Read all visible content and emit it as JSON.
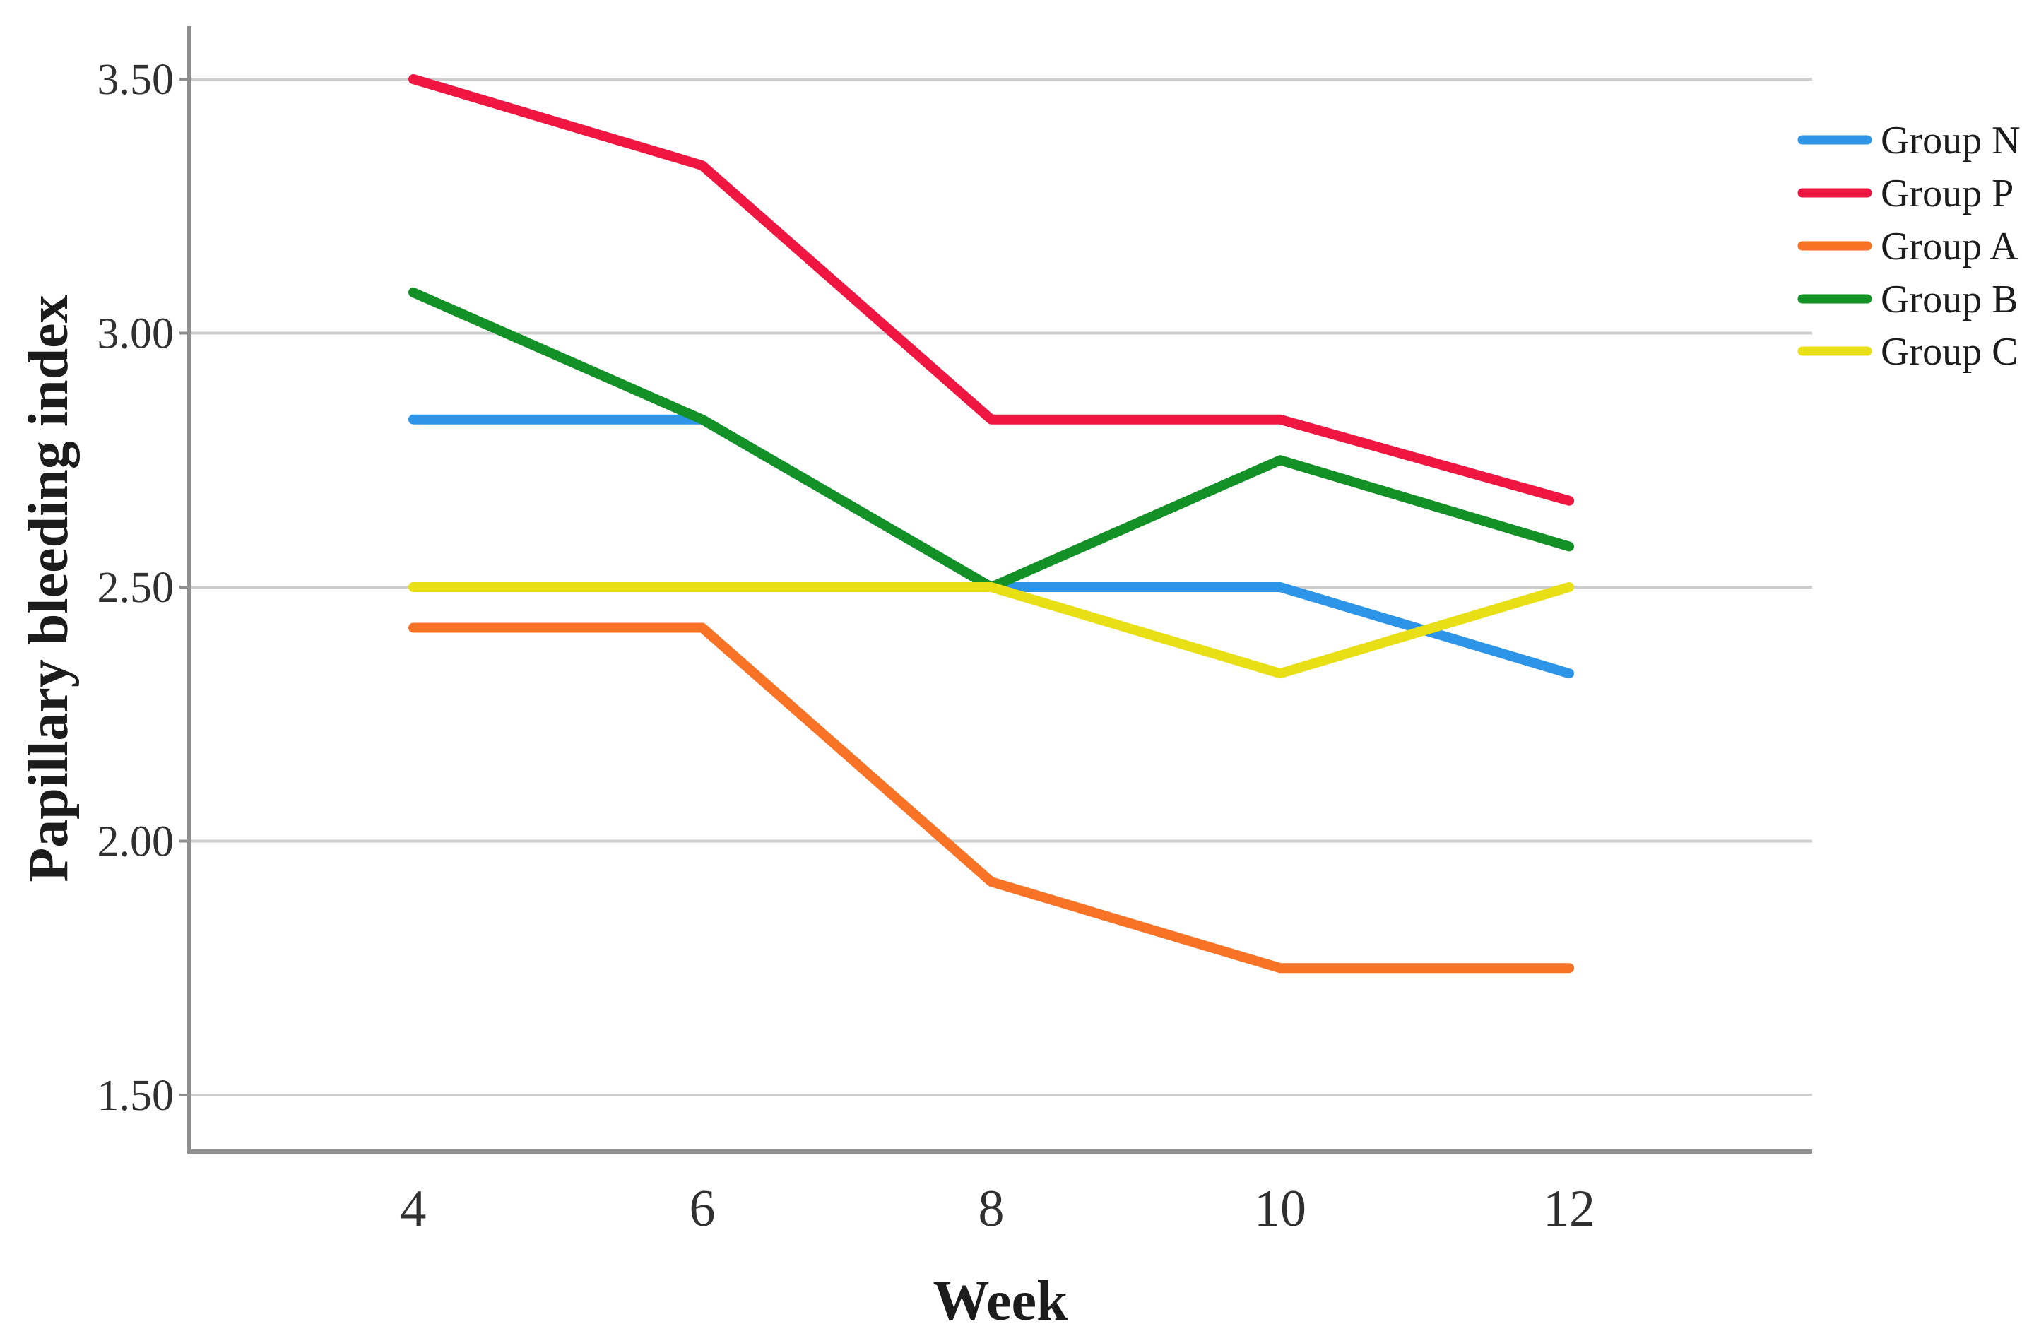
{
  "figure": {
    "type_note": "line chart figure, white background, legend at right"
  },
  "chart_data": {
    "type": "line",
    "title": "",
    "x": [
      4,
      6,
      8,
      10,
      12
    ],
    "x_tick_labels": [
      "4",
      "6",
      "8",
      "10",
      "12"
    ],
    "xlabel": "Week",
    "ylabel": "Papillary bleeding index",
    "ylim": [
      1.39,
      3.6
    ],
    "yticks": [
      {
        "value": 3.5,
        "label": "3.50"
      },
      {
        "value": 3.0,
        "label": "3.00"
      },
      {
        "value": 2.5,
        "label": "2.50"
      },
      {
        "value": 2.0,
        "label": "2.00"
      },
      {
        "value": 1.5,
        "label": "1.50"
      }
    ],
    "grid": "horizontal-major-only",
    "legend_position": "right",
    "series": [
      {
        "name": "Group N",
        "color": "#2d95e8",
        "values": [
          2.83,
          2.83,
          2.5,
          2.5,
          2.33
        ]
      },
      {
        "name": "Group P",
        "color": "#ef1742",
        "values": [
          3.5,
          3.33,
          2.83,
          2.83,
          2.67
        ]
      },
      {
        "name": "Group A",
        "color": "#f97327",
        "values": [
          2.42,
          2.42,
          1.92,
          1.75,
          1.75
        ]
      },
      {
        "name": "Group B",
        "color": "#149126",
        "values": [
          3.08,
          2.83,
          2.5,
          2.75,
          2.58
        ]
      },
      {
        "name": "Group C",
        "color": "#e8df14",
        "values": [
          2.5,
          2.5,
          2.5,
          2.33,
          2.5
        ]
      }
    ],
    "colors": {
      "gridline": "#cdcdcd",
      "axis": "#8f8f8f",
      "tick_text": "#303030",
      "title_text": "#1c1c1c"
    }
  }
}
